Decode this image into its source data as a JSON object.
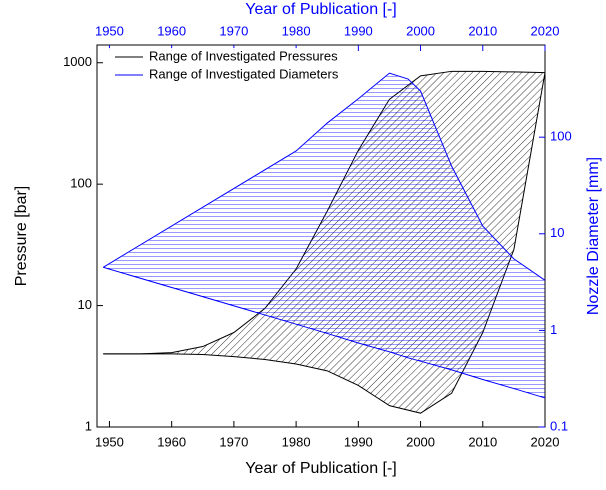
{
  "chart_data": {
    "type": "band",
    "xlabel": "Year of Publication [-]",
    "x2label": "Year of Publication [-]",
    "ylabel": "Pressure [bar]",
    "y2label": "Nozzle Diameter [mm]",
    "xlim": [
      1948,
      2020
    ],
    "xticks": [
      1950,
      1960,
      1970,
      1980,
      1990,
      2000,
      2010,
      2020
    ],
    "ylim": [
      1,
      1400
    ],
    "yticks": [
      1,
      10,
      100,
      1000
    ],
    "yscale": "log",
    "y2lim": [
      0.1,
      900
    ],
    "y2ticks": [
      0.1,
      1,
      10,
      100
    ],
    "y2scale": "log",
    "legend": "upper left",
    "series": [
      {
        "name": "Range of Investigated Pressures",
        "color": "#000000",
        "hatch": "diagonal",
        "axis": "y",
        "x": [
          1949,
          1955,
          1960,
          1965,
          1970,
          1975,
          1980,
          1985,
          1990,
          1995,
          2000,
          2005,
          2010,
          2015,
          2020
        ],
        "upper": [
          4,
          4,
          4.1,
          4.6,
          6,
          9.5,
          20,
          60,
          190,
          500,
          780,
          850,
          850,
          840,
          830
        ],
        "lower": [
          4,
          4,
          4,
          3.95,
          3.8,
          3.6,
          3.3,
          2.9,
          2.2,
          1.5,
          1.3,
          1.9,
          6,
          29,
          830
        ]
      },
      {
        "name": "Range of Investigated Diameters",
        "color": "#0000ff",
        "hatch": "horizontal",
        "axis": "y2",
        "x": [
          1949,
          1980,
          1985,
          1990,
          1995,
          1998,
          2000,
          2005,
          2010,
          2015,
          2020
        ],
        "upper": [
          4.5,
          72,
          140,
          250,
          460,
          400,
          300,
          50,
          12,
          5.5,
          3.3
        ],
        "lower": [
          4.5,
          1.16,
          0.93,
          0.74,
          0.6,
          0.52,
          0.48,
          0.39,
          0.31,
          0.25,
          0.2
        ]
      }
    ]
  }
}
